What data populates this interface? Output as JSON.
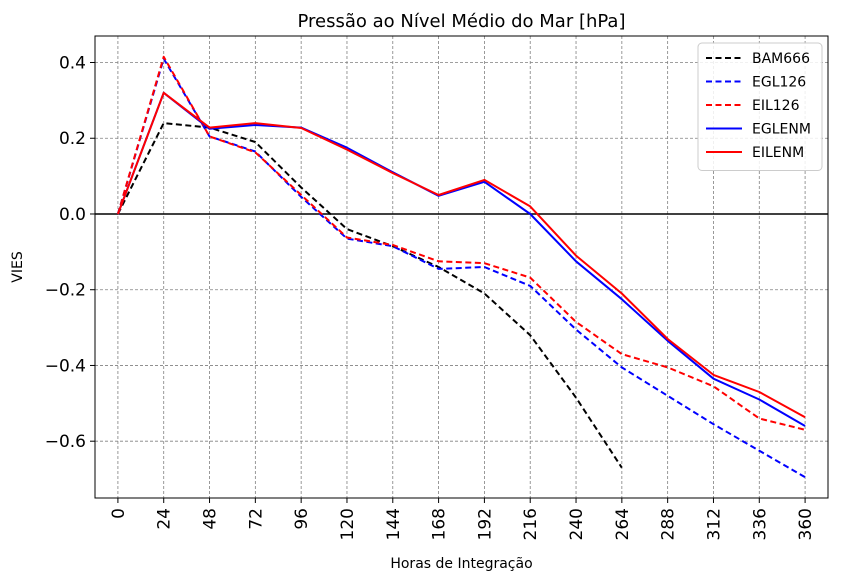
{
  "chart_data": {
    "type": "line",
    "title": "Pressão ao Nível Médio do Mar [hPa]",
    "xlabel": "Horas de Integração",
    "ylabel": "VIES",
    "categories": [
      "0",
      "24",
      "48",
      "72",
      "96",
      "120",
      "144",
      "168",
      "192",
      "216",
      "240",
      "264",
      "288",
      "312",
      "336",
      "360"
    ],
    "x": [
      0,
      24,
      48,
      72,
      96,
      120,
      144,
      168,
      192,
      216,
      240,
      264,
      288,
      312,
      336,
      360
    ],
    "xlim": [
      -12,
      372
    ],
    "ylim": [
      -0.75,
      0.47
    ],
    "yticks": [
      0.4,
      0.2,
      0.0,
      -0.2,
      -0.4,
      -0.6
    ],
    "ytick_labels": [
      "0.4",
      "0.2",
      "0.0",
      "−0.2",
      "−0.4",
      "−0.6"
    ],
    "grid": true,
    "zero_line": true,
    "legend_position": "top-right",
    "series": [
      {
        "name": "BAM666",
        "color": "#000000",
        "dashed": true,
        "values": [
          0.0,
          0.24,
          0.228,
          0.19,
          0.07,
          -0.04,
          -0.085,
          -0.14,
          -0.21,
          -0.32,
          -0.485,
          -0.67,
          null,
          null,
          null,
          null
        ]
      },
      {
        "name": "EGL126",
        "color": "#0000ff",
        "dashed": true,
        "values": [
          0.0,
          0.41,
          0.205,
          0.165,
          0.045,
          -0.065,
          -0.085,
          -0.145,
          -0.14,
          -0.19,
          -0.305,
          -0.405,
          -0.48,
          -0.555,
          -0.625,
          -0.695
        ]
      },
      {
        "name": "EIL126",
        "color": "#ff0000",
        "dashed": true,
        "values": [
          0.0,
          0.415,
          0.205,
          0.163,
          0.05,
          -0.062,
          -0.082,
          -0.125,
          -0.13,
          -0.168,
          -0.285,
          -0.37,
          -0.405,
          -0.455,
          -0.54,
          -0.57
        ]
      },
      {
        "name": "EGLENM",
        "color": "#0000ff",
        "dashed": false,
        "values": [
          0.0,
          0.32,
          0.225,
          0.235,
          0.228,
          0.175,
          0.11,
          0.048,
          0.085,
          0.0,
          -0.125,
          -0.225,
          -0.335,
          -0.435,
          -0.49,
          -0.56
        ]
      },
      {
        "name": "EILENM",
        "color": "#ff0000",
        "dashed": false,
        "values": [
          0.0,
          0.32,
          0.228,
          0.24,
          0.227,
          0.17,
          0.108,
          0.05,
          0.09,
          0.02,
          -0.11,
          -0.21,
          -0.33,
          -0.425,
          -0.47,
          -0.537
        ]
      }
    ]
  }
}
